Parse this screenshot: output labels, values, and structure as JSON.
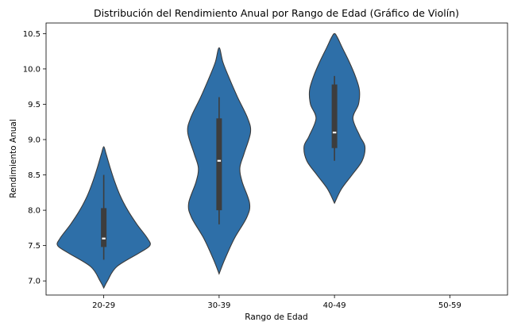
{
  "chart_data": {
    "type": "violin",
    "title": "Distribución del Rendimiento Anual por Rango de Edad (Gráfico de Violín)",
    "xlabel": "Rango de Edad",
    "ylabel": "Rendimiento Anual",
    "ylim": [
      6.8,
      10.65
    ],
    "yticks": [
      7.0,
      7.5,
      8.0,
      8.5,
      9.0,
      9.5,
      10.0,
      10.5
    ],
    "ytick_labels": [
      "7.0",
      "7.5",
      "8.0",
      "8.5",
      "9.0",
      "9.5",
      "10.0",
      "10.5"
    ],
    "categories": [
      "20-29",
      "30-39",
      "40-49",
      "50-59"
    ],
    "color": "#2e6fa8",
    "grid": false,
    "violins": [
      {
        "category": "20-29",
        "profile": [
          [
            6.9,
            0.0
          ],
          [
            7.0,
            0.08
          ],
          [
            7.2,
            0.28
          ],
          [
            7.4,
            0.78
          ],
          [
            7.5,
            1.0
          ],
          [
            7.6,
            0.95
          ],
          [
            7.8,
            0.72
          ],
          [
            8.0,
            0.52
          ],
          [
            8.2,
            0.36
          ],
          [
            8.4,
            0.24
          ],
          [
            8.6,
            0.14
          ],
          [
            8.8,
            0.05
          ],
          [
            8.9,
            0.0
          ]
        ],
        "whisker": [
          7.3,
          8.5
        ],
        "q1": 7.48,
        "median": 7.6,
        "q3": 8.03
      },
      {
        "category": "30-39",
        "profile": [
          [
            7.1,
            0.0
          ],
          [
            7.3,
            0.12
          ],
          [
            7.6,
            0.33
          ],
          [
            7.9,
            0.6
          ],
          [
            8.1,
            0.66
          ],
          [
            8.4,
            0.5
          ],
          [
            8.6,
            0.45
          ],
          [
            8.8,
            0.54
          ],
          [
            9.1,
            0.68
          ],
          [
            9.3,
            0.62
          ],
          [
            9.6,
            0.4
          ],
          [
            9.9,
            0.2
          ],
          [
            10.1,
            0.08
          ],
          [
            10.3,
            0.0
          ]
        ],
        "whisker": [
          7.8,
          9.6
        ],
        "q1": 8.0,
        "median": 8.7,
        "q3": 9.3
      },
      {
        "category": "40-49",
        "profile": [
          [
            8.1,
            0.0
          ],
          [
            8.3,
            0.15
          ],
          [
            8.5,
            0.38
          ],
          [
            8.7,
            0.6
          ],
          [
            8.9,
            0.66
          ],
          [
            9.05,
            0.55
          ],
          [
            9.3,
            0.4
          ],
          [
            9.5,
            0.52
          ],
          [
            9.7,
            0.54
          ],
          [
            9.9,
            0.45
          ],
          [
            10.1,
            0.32
          ],
          [
            10.3,
            0.17
          ],
          [
            10.45,
            0.06
          ],
          [
            10.5,
            0.0
          ]
        ],
        "whisker": [
          8.7,
          9.9
        ],
        "q1": 8.88,
        "median": 9.1,
        "q3": 9.78
      }
    ]
  }
}
